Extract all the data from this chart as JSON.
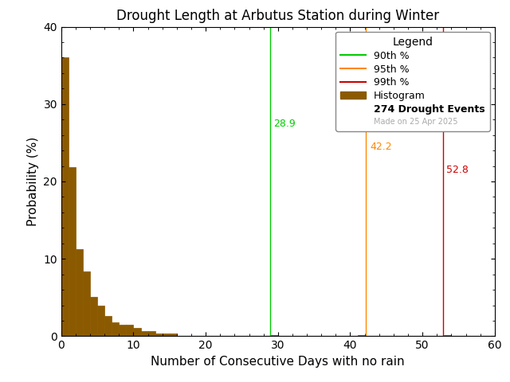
{
  "title": "Drought Length at Arbutus Station during Winter",
  "xlabel": "Number of Consecutive Days with no rain",
  "ylabel": "Probability (%)",
  "xlim": [
    0,
    60
  ],
  "ylim": [
    0,
    40
  ],
  "xticks": [
    0,
    10,
    20,
    30,
    40,
    50,
    60
  ],
  "yticks": [
    0,
    10,
    20,
    30,
    40
  ],
  "bar_color": "#8B5A00",
  "bar_edgecolor": "#8B5A00",
  "background_color": "#ffffff",
  "percentile_90": 28.9,
  "percentile_95": 42.2,
  "percentile_99": 52.8,
  "percentile_90_color": "#00cc00",
  "percentile_95_color": "#ff8800",
  "percentile_99_color": "#cc0000",
  "drought_events": 274,
  "made_on": "Made on 25 Apr 2025",
  "legend_title": "Legend",
  "hist_probabilities": [
    36.0,
    21.9,
    11.3,
    8.4,
    5.1,
    4.0,
    2.6,
    1.8,
    1.5,
    1.5,
    1.1,
    0.7,
    0.7,
    0.4,
    0.4,
    0.4,
    0.0,
    0.0,
    0.0,
    0.0,
    0.0,
    0.0,
    0.0,
    0.0,
    0.0,
    0.0,
    0.0,
    0.0,
    0.0,
    0.15,
    0.0,
    0.0,
    0.0,
    0.0,
    0.0,
    0.0,
    0.0,
    0.0,
    0.0,
    0.0,
    0.0,
    0.15,
    0.0,
    0.0,
    0.0,
    0.0,
    0.0,
    0.0,
    0.0,
    0.0,
    0.0,
    0.0,
    0.0,
    0.15,
    0.0,
    0.0,
    0.0,
    0.0,
    0.0,
    0.0
  ]
}
